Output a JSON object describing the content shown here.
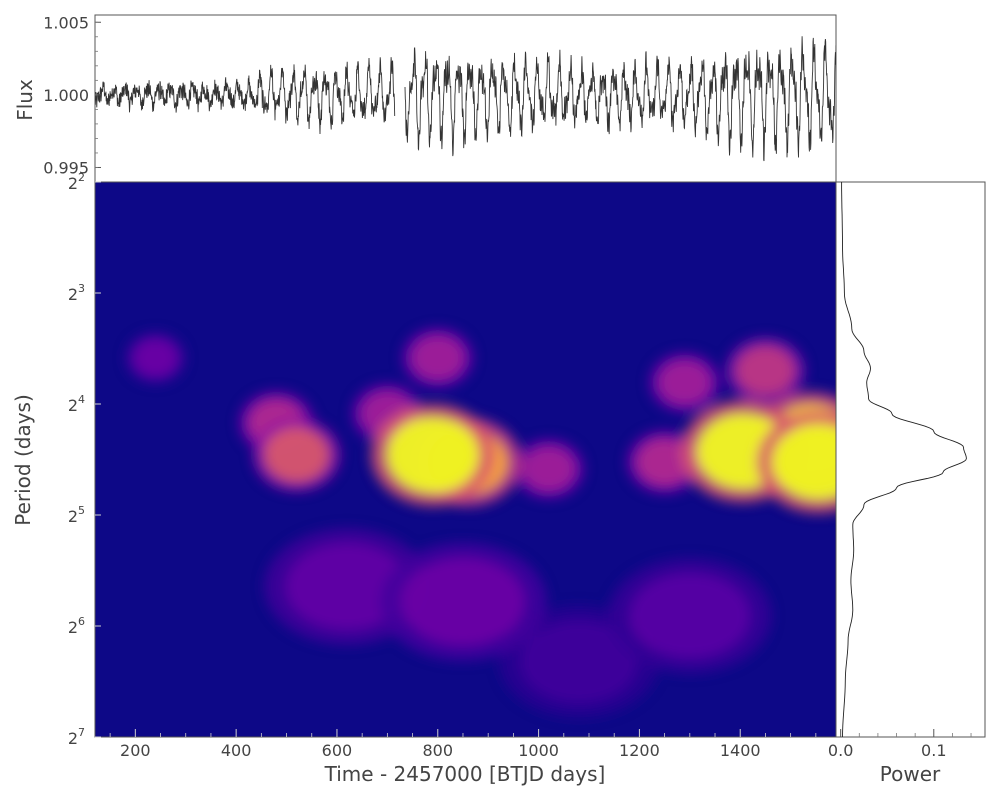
{
  "chart_data": [
    {
      "panel": "light-curve",
      "type": "line",
      "ylabel": "Flux",
      "ylim": [
        0.994,
        1.0055
      ],
      "xlim": [
        120,
        1590
      ],
      "yticks": [
        {
          "value": 0.995,
          "label": "0.995"
        },
        {
          "value": 1.0,
          "label": "1.000"
        },
        {
          "value": 1.005,
          "label": "1.005"
        }
      ],
      "line_color": "#333333",
      "gaps": [
        [
          715,
          735
        ]
      ],
      "envelope": [
        {
          "x": 120,
          "amp": 0.0007
        },
        {
          "x": 420,
          "amp": 0.0008
        },
        {
          "x": 460,
          "amp": 0.0018
        },
        {
          "x": 700,
          "amp": 0.0024
        },
        {
          "x": 760,
          "amp": 0.0038
        },
        {
          "x": 960,
          "amp": 0.003
        },
        {
          "x": 1100,
          "amp": 0.0022
        },
        {
          "x": 1300,
          "amp": 0.0026
        },
        {
          "x": 1400,
          "amp": 0.004
        },
        {
          "x": 1590,
          "amp": 0.0042
        }
      ],
      "dominant_period": 22
    },
    {
      "panel": "wavelet-power",
      "type": "heatmap",
      "xlabel": "Time - 2457000 [BTJD days]",
      "ylabel": "Period (days)",
      "xlim": [
        120,
        1590
      ],
      "ylim": [
        4,
        128
      ],
      "yscale": "log2",
      "xticks": [
        200,
        400,
        600,
        800,
        1000,
        1200,
        1400,
        1600
      ],
      "xtick_labels": [
        "200",
        "400",
        "600",
        "800",
        "1000",
        "1200",
        "1400",
        ""
      ],
      "yticks": [
        {
          "value": 4,
          "base": "2",
          "exp": "2"
        },
        {
          "value": 8,
          "base": "2",
          "exp": "3"
        },
        {
          "value": 16,
          "base": "2",
          "exp": "4"
        },
        {
          "value": 32,
          "base": "2",
          "exp": "5"
        },
        {
          "value": 64,
          "base": "2",
          "exp": "6"
        },
        {
          "value": 128,
          "base": "2",
          "exp": "7"
        }
      ],
      "colormap": "plasma",
      "colormap_stops": [
        "#0d0887",
        "#5302a3",
        "#8b0aa5",
        "#b83289",
        "#db5c68",
        "#f48849",
        "#febd2a",
        "#f0f921"
      ],
      "background_level": 0.0,
      "power_peaks": [
        {
          "time": 790,
          "period": 22,
          "power": 1.0
        },
        {
          "time": 860,
          "period": 23,
          "power": 0.8
        },
        {
          "time": 1405,
          "period": 21.5,
          "power": 1.0
        },
        {
          "time": 1555,
          "period": 23,
          "power": 1.0
        },
        {
          "time": 1540,
          "period": 20,
          "power": 0.9
        },
        {
          "time": 520,
          "period": 22,
          "power": 0.55
        },
        {
          "time": 480,
          "period": 18,
          "power": 0.4
        },
        {
          "time": 1020,
          "period": 24,
          "power": 0.35
        },
        {
          "time": 1250,
          "period": 23,
          "power": 0.4
        },
        {
          "time": 1290,
          "period": 14,
          "power": 0.35
        },
        {
          "time": 1450,
          "period": 13,
          "power": 0.45
        },
        {
          "time": 800,
          "period": 12,
          "power": 0.35
        },
        {
          "time": 700,
          "period": 17,
          "power": 0.35
        },
        {
          "time": 240,
          "period": 12,
          "power": 0.2
        },
        {
          "time": 620,
          "period": 50,
          "power": 0.18
        },
        {
          "time": 850,
          "period": 55,
          "power": 0.2
        },
        {
          "time": 1300,
          "period": 60,
          "power": 0.15
        },
        {
          "time": 1080,
          "period": 80,
          "power": 0.1
        }
      ]
    },
    {
      "panel": "global-power",
      "type": "line",
      "xlabel": "Power",
      "xlim": [
        -0.005,
        0.155
      ],
      "xticks": [
        {
          "value": 0.0,
          "label": "0.0"
        },
        {
          "value": 0.1,
          "label": "0.1"
        }
      ],
      "ylim": [
        4,
        128
      ],
      "yscale": "log2",
      "line_color": "#222222",
      "points": [
        {
          "period": 4.0,
          "power": 0.001
        },
        {
          "period": 6.0,
          "power": 0.002
        },
        {
          "period": 8.0,
          "power": 0.004
        },
        {
          "period": 10.0,
          "power": 0.012
        },
        {
          "period": 11.5,
          "power": 0.025
        },
        {
          "period": 12.8,
          "power": 0.032
        },
        {
          "period": 14.0,
          "power": 0.028
        },
        {
          "period": 15.5,
          "power": 0.03
        },
        {
          "period": 17.0,
          "power": 0.055
        },
        {
          "period": 19.0,
          "power": 0.1
        },
        {
          "period": 21.0,
          "power": 0.132
        },
        {
          "period": 22.5,
          "power": 0.135
        },
        {
          "period": 24.5,
          "power": 0.11
        },
        {
          "period": 27.0,
          "power": 0.06
        },
        {
          "period": 30.0,
          "power": 0.025
        },
        {
          "period": 34.0,
          "power": 0.013
        },
        {
          "period": 40.0,
          "power": 0.014
        },
        {
          "period": 48.0,
          "power": 0.011
        },
        {
          "period": 58.0,
          "power": 0.013
        },
        {
          "period": 70.0,
          "power": 0.008
        },
        {
          "period": 90.0,
          "power": 0.005
        },
        {
          "period": 128.0,
          "power": 0.002
        }
      ]
    }
  ]
}
